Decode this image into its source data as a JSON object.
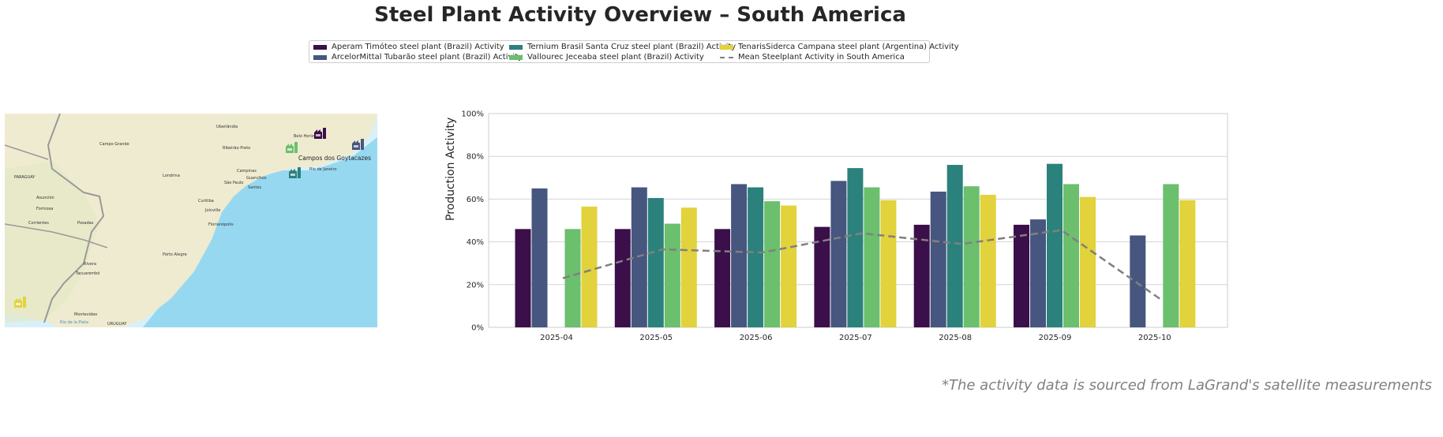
{
  "title": "Steel Plant Activity Overview – South America",
  "footer": "*The activity data is sourced from LaGrand's satellite measurements",
  "legend": [
    {
      "label": "Aperam Timóteo steel plant (Brazil) Activity",
      "color": "#3b0f4a",
      "kind": "bar"
    },
    {
      "label": "ArcelorMittal Tubarão steel plant (Brazil) Activity",
      "color": "#46567e",
      "kind": "bar"
    },
    {
      "label": "Ternium Brasil Santa Cruz steel plant (Brazil) Activity",
      "color": "#2b817c",
      "kind": "bar"
    },
    {
      "label": "Vallourec Jeceaba steel plant (Brazil) Activity",
      "color": "#6bbf6d",
      "kind": "bar"
    },
    {
      "label": "TenarisSiderca Campana steel plant (Argentina) Activity",
      "color": "#e2d23b",
      "kind": "bar"
    },
    {
      "label": "Mean Steelplant Activity in South America",
      "color": "#808080",
      "kind": "dashed-line"
    }
  ],
  "map": {
    "labels": [
      "PARAGUAY",
      "URUGUAY",
      "Asunción",
      "Campo Grande",
      "Londrina",
      "Curitiba",
      "Joinville",
      "Florianópolis",
      "Porto Alegre",
      "Campinas",
      "Guarulhos",
      "São Paulo",
      "Santos",
      "Uberlândia",
      "Ribeirão Preto",
      "Belo Horizonte",
      "Rio de Janeiro",
      "Campos dos Goytacazes",
      "Posadas",
      "Corrientes",
      "Formosa",
      "Montevideo",
      "Rivera",
      "Tacuarembó",
      "Río de la Plata"
    ],
    "markers": [
      {
        "plant": "Aperam Timóteo",
        "color": "#3b0f4a"
      },
      {
        "plant": "ArcelorMittal Tubarão",
        "color": "#46567e"
      },
      {
        "plant": "Ternium Brasil Santa Cruz",
        "color": "#2b817c"
      },
      {
        "plant": "Vallourec Jeceaba",
        "color": "#6bbf6d"
      },
      {
        "plant": "TenarisSiderca Campana",
        "color": "#e2d23b"
      }
    ]
  },
  "chart_data": {
    "type": "bar",
    "title": "",
    "xlabel": "",
    "ylabel": "Production Activity",
    "ylim": [
      0,
      100
    ],
    "yticks": [
      "0%",
      "20%",
      "40%",
      "60%",
      "80%",
      "100%"
    ],
    "grid": true,
    "legend_position": "top-center",
    "categories": [
      "2025-04",
      "2025-05",
      "2025-06",
      "2025-07",
      "2025-08",
      "2025-09",
      "2025-10"
    ],
    "series": [
      {
        "name": "Aperam Timóteo steel plant (Brazil) Activity",
        "color": "#3b0f4a",
        "values": [
          46,
          46,
          46,
          47,
          48,
          48,
          null
        ]
      },
      {
        "name": "ArcelorMittal Tubarão steel plant (Brazil) Activity",
        "color": "#46567e",
        "values": [
          65,
          65.5,
          67,
          68.5,
          63.5,
          50.5,
          43
        ]
      },
      {
        "name": "Ternium Brasil Santa Cruz steel plant (Brazil) Activity",
        "color": "#2b817c",
        "values": [
          null,
          60.5,
          65.5,
          74.5,
          76,
          76.5,
          null
        ]
      },
      {
        "name": "Vallourec Jeceaba steel plant (Brazil) Activity",
        "color": "#6bbf6d",
        "values": [
          46,
          48.5,
          59,
          65.5,
          66,
          67,
          67
        ]
      },
      {
        "name": "TenarisSiderca Campana steel plant (Argentina) Activity",
        "color": "#e2d23b",
        "values": [
          56.5,
          56,
          57,
          59.5,
          62,
          61,
          59.5
        ]
      }
    ],
    "line": {
      "name": "Mean Steelplant Activity in South America",
      "color": "#808080",
      "style": "dashed",
      "values": [
        23,
        36.5,
        35,
        44,
        39,
        45.5,
        13
      ]
    }
  }
}
